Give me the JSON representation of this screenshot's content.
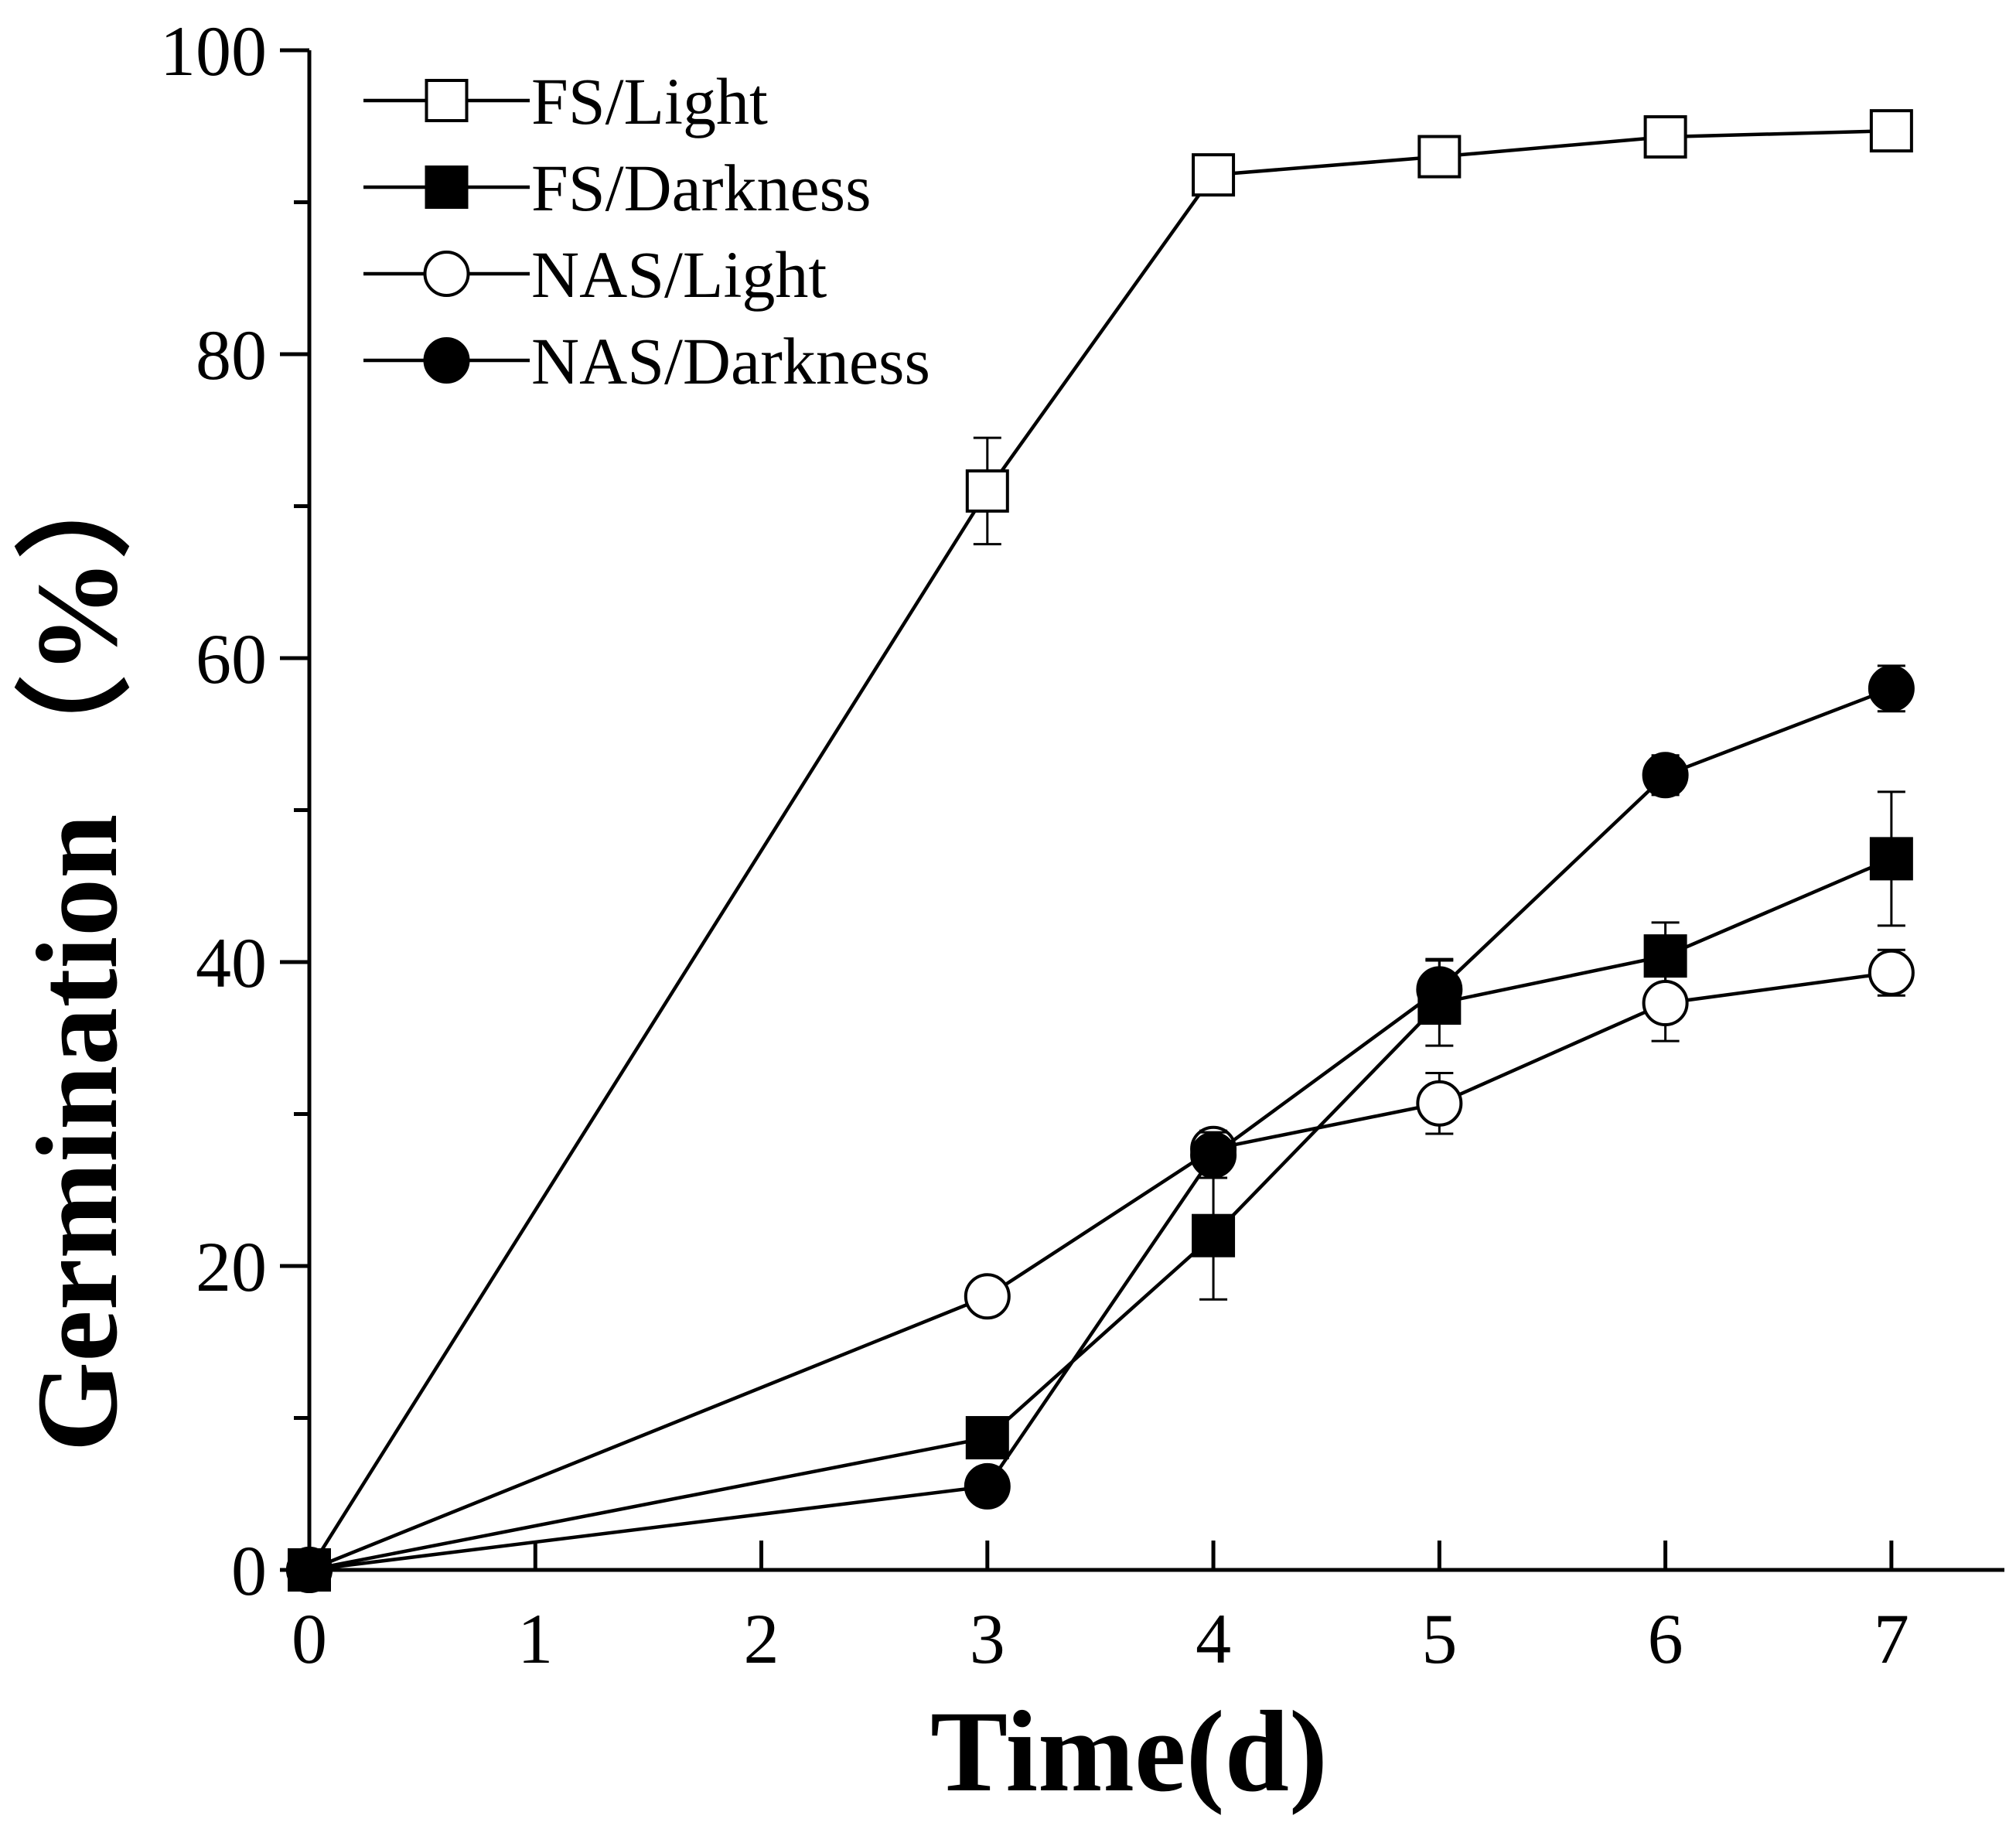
{
  "chart_data": {
    "type": "line",
    "title": "",
    "xlabel": "Time(d)",
    "ylabel": "Germination",
    "ylabel_unit": "（%）",
    "xlim": [
      0,
      7.5
    ],
    "ylim": [
      0,
      100
    ],
    "xticks": [
      0,
      1,
      2,
      3,
      4,
      5,
      6,
      7
    ],
    "yticks": [
      0,
      20,
      40,
      60,
      80,
      100
    ],
    "legend_position": "top-left",
    "grid": false,
    "series": [
      {
        "name": "FS/Light",
        "marker": "square-open",
        "x": [
          0,
          3,
          4,
          5,
          6,
          7
        ],
        "y": [
          0,
          71,
          91.8,
          93,
          94.3,
          94.7
        ],
        "err": [
          0,
          3.5,
          0.8,
          0.8,
          1.0,
          1.0
        ]
      },
      {
        "name": "FS/Darkness",
        "marker": "square-filled",
        "x": [
          0,
          3,
          4,
          5,
          6,
          7
        ],
        "y": [
          0,
          8.7,
          22,
          37.3,
          40.4,
          46.8
        ],
        "err": [
          0,
          0.6,
          4.2,
          2.8,
          2.2,
          4.4
        ]
      },
      {
        "name": "NAS/Light",
        "marker": "circle-open",
        "x": [
          0,
          3,
          4,
          5,
          6,
          7
        ],
        "y": [
          0,
          18,
          27.7,
          30.7,
          37.3,
          39.3
        ],
        "err": [
          0,
          1.0,
          1.2,
          2.0,
          2.5,
          1.5
        ]
      },
      {
        "name": "NAS/Darkness",
        "marker": "circle-filled",
        "x": [
          0,
          3,
          4,
          5,
          6,
          7
        ],
        "y": [
          0,
          5.5,
          27.3,
          38.2,
          52.3,
          58
        ],
        "err": [
          0,
          0.5,
          1.5,
          2.0,
          1.3,
          1.5
        ]
      }
    ]
  }
}
